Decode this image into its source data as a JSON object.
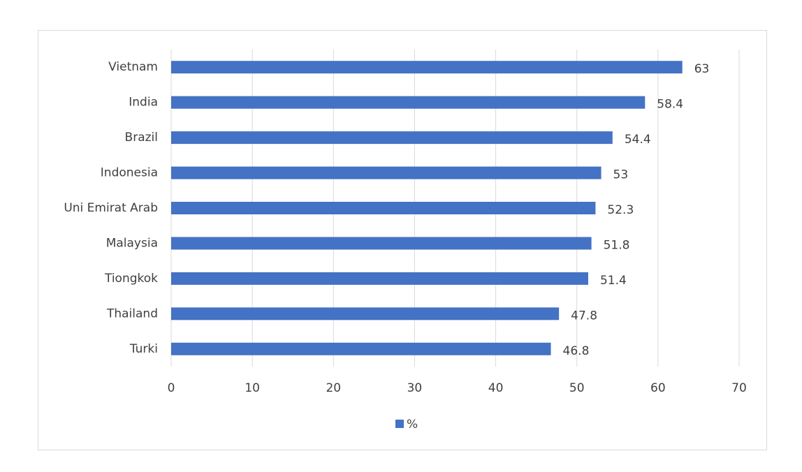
{
  "chart_data": {
    "type": "bar",
    "orientation": "horizontal",
    "categories": [
      "Vietnam",
      "India",
      "Brazil",
      "Indonesia",
      "Uni Emirat Arab",
      "Malaysia",
      "Tiongkok",
      "Thailand",
      "Turki"
    ],
    "series": [
      {
        "name": "%",
        "color": "#4472c4",
        "values": [
          63,
          58.4,
          54.4,
          53,
          52.3,
          51.8,
          51.4,
          47.8,
          46.8
        ]
      }
    ],
    "xlim": [
      0,
      70
    ],
    "xticks": [
      0,
      10,
      20,
      30,
      40,
      50,
      60,
      70
    ],
    "grid": true,
    "legend": "bottom"
  }
}
